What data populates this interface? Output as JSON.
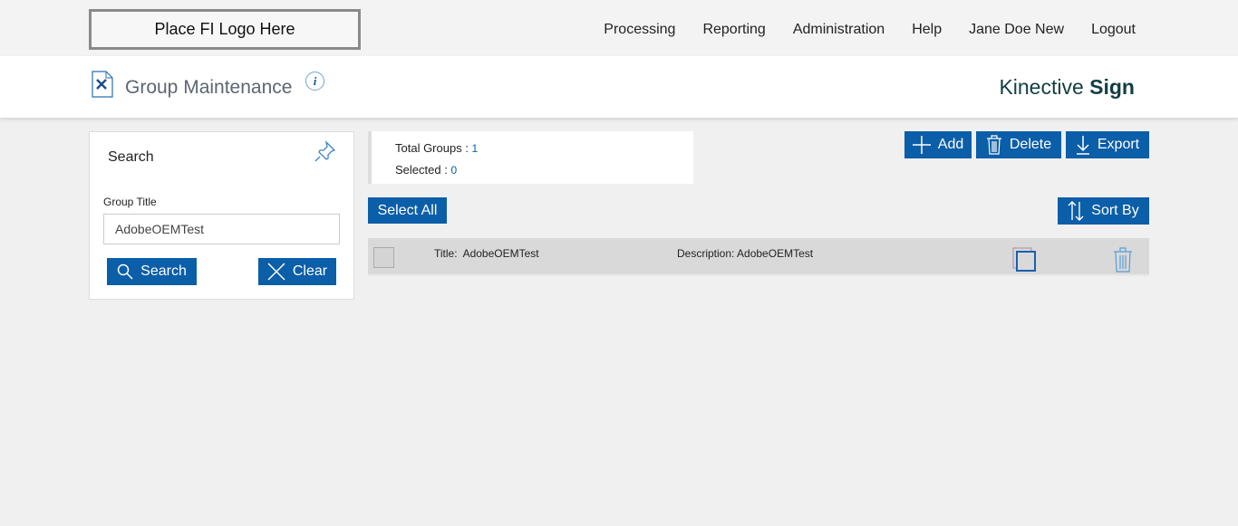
{
  "header": {
    "logo_text": "Place FI Logo Here",
    "nav": [
      "Processing",
      "Reporting",
      "Administration",
      "Help",
      "Jane Doe New",
      "Logout"
    ]
  },
  "subheader": {
    "title": "Group Maintenance",
    "info_icon": "i",
    "brand_light": "Kinective ",
    "brand_bold": "Sign"
  },
  "search": {
    "heading": "Search",
    "field_label": "Group Title",
    "field_value": "AdobeOEMTest",
    "search_label": "Search",
    "clear_label": "Clear"
  },
  "stats": {
    "total_label": "Total Groups : ",
    "total_value": "1",
    "selected_label": "Selected : ",
    "selected_value": "0"
  },
  "toolbar": {
    "add": "Add",
    "delete": "Delete",
    "export": "Export",
    "select_all": "Select All",
    "sort_by": "Sort By"
  },
  "rows": [
    {
      "title_label": "Title:",
      "title": "AdobeOEMTest",
      "description_label": "Description:",
      "description": "AdobeOEMTest"
    }
  ],
  "colors": {
    "accent": "#0b5ea8",
    "brand": "#123e44"
  }
}
